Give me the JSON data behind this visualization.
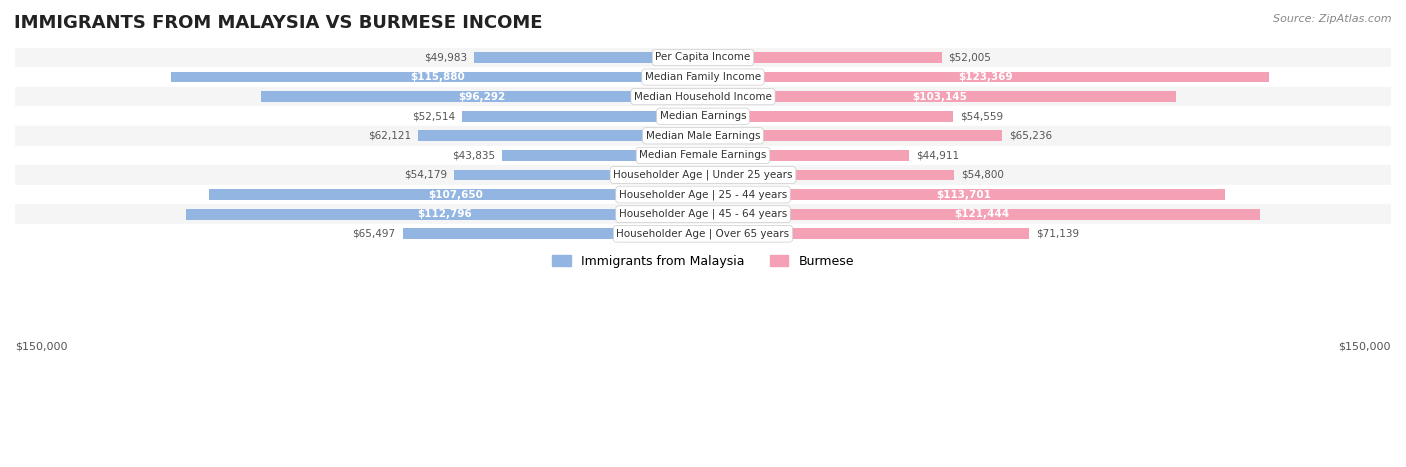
{
  "title": "IMMIGRANTS FROM MALAYSIA VS BURMESE INCOME",
  "source": "Source: ZipAtlas.com",
  "categories": [
    "Per Capita Income",
    "Median Family Income",
    "Median Household Income",
    "Median Earnings",
    "Median Male Earnings",
    "Median Female Earnings",
    "Householder Age | Under 25 years",
    "Householder Age | 25 - 44 years",
    "Householder Age | 45 - 64 years",
    "Householder Age | Over 65 years"
  ],
  "malaysia_values": [
    49983,
    115880,
    96292,
    52514,
    62121,
    43835,
    54179,
    107650,
    112796,
    65497
  ],
  "burmese_values": [
    52005,
    123369,
    103145,
    54559,
    65236,
    44911,
    54800,
    113701,
    121444,
    71139
  ],
  "malaysia_labels": [
    "$49,983",
    "$115,880",
    "$96,292",
    "$52,514",
    "$62,121",
    "$43,835",
    "$54,179",
    "$107,650",
    "$112,796",
    "$65,497"
  ],
  "burmese_labels": [
    "$52,005",
    "$123,369",
    "$103,145",
    "$54,559",
    "$65,236",
    "$44,911",
    "$54,800",
    "$113,701",
    "$121,444",
    "$71,139"
  ],
  "malaysia_color": "#93b5e1",
  "burmese_color": "#f4a0b5",
  "malaysia_label_color_threshold": 90000,
  "burmese_label_color_threshold": 90000,
  "max_value": 150000,
  "background_color": "#ffffff",
  "row_bg_light": "#f5f5f5",
  "row_bg_white": "#ffffff",
  "bar_height": 0.55,
  "legend_malaysia": "Immigrants from Malaysia",
  "legend_burmese": "Burmese"
}
